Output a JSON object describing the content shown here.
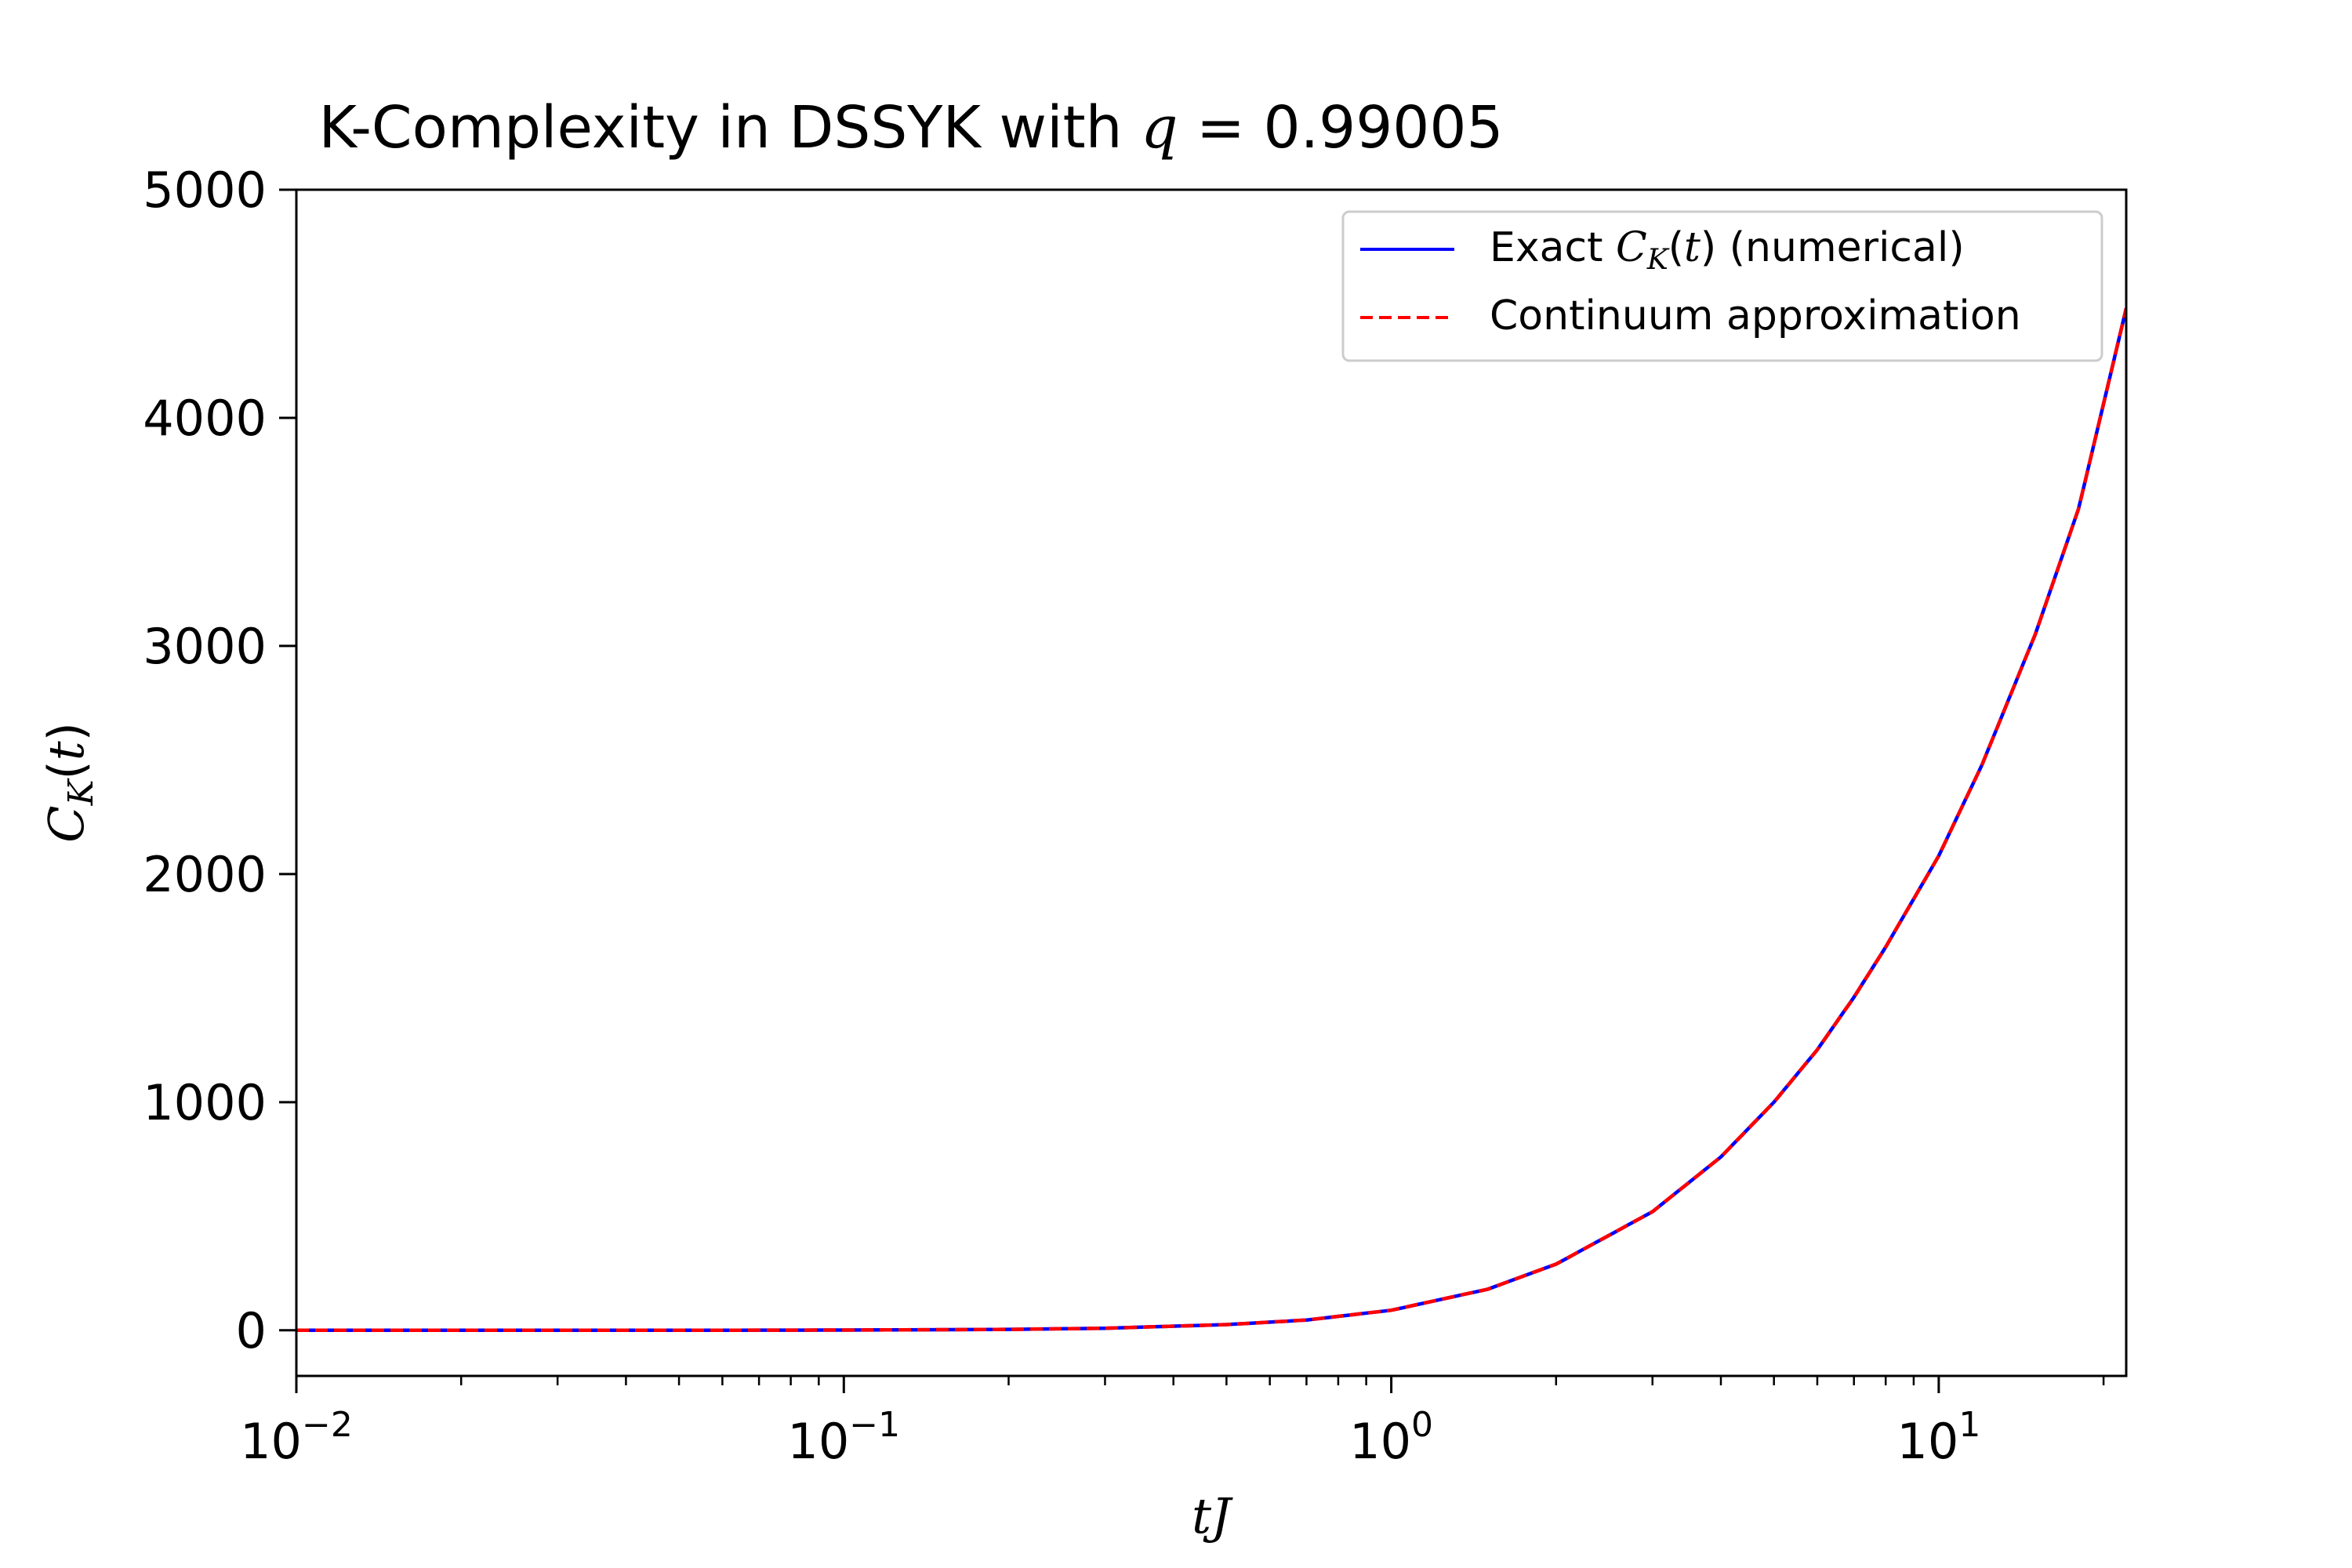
{
  "chart_data": {
    "type": "line",
    "title": "K-Complexity in DSSYK with ",
    "title_math": "q",
    "title_rhs": " = 0.99005",
    "xlabel": "tJ",
    "ylabel": "C_K(t)",
    "xscale": "log",
    "xlim": [
      0.01,
      22
    ],
    "ylim": [
      -200,
      5000
    ],
    "x_ticks": [
      {
        "value": 0.01,
        "base": "10",
        "exp": "−2"
      },
      {
        "value": 0.1,
        "base": "10",
        "exp": "−1"
      },
      {
        "value": 1,
        "base": "10",
        "exp": "0"
      },
      {
        "value": 10,
        "base": "10",
        "exp": "1"
      }
    ],
    "y_ticks": [
      {
        "value": 0,
        "label": "0"
      },
      {
        "value": 1000,
        "label": "1000"
      },
      {
        "value": 2000,
        "label": "2000"
      },
      {
        "value": 3000,
        "label": "3000"
      },
      {
        "value": 4000,
        "label": "4000"
      },
      {
        "value": 5000,
        "label": "5000"
      }
    ],
    "legend_position": "top-right",
    "series": [
      {
        "name": "Exact C_K(t) (numerical)",
        "legend_prefix": "Exact ",
        "legend_suffix": " (numerical)",
        "color": "#0000ff",
        "style": "solid",
        "x": [
          0.01,
          0.02,
          0.05,
          0.1,
          0.2,
          0.3,
          0.5,
          0.7,
          1,
          1.5,
          2,
          3,
          4,
          5,
          6,
          7,
          8,
          10,
          12,
          15,
          18,
          22
        ],
        "y": [
          0.01,
          0.04,
          0.25,
          1,
          4,
          9,
          25,
          45,
          88,
          180,
          290,
          520,
          760,
          1000,
          1230,
          1460,
          1680,
          2080,
          2480,
          3050,
          3600,
          4480
        ]
      },
      {
        "name": "Continuum approximation",
        "color": "#ff0000",
        "style": "dashed",
        "x": [
          0.01,
          0.02,
          0.05,
          0.1,
          0.2,
          0.3,
          0.5,
          0.7,
          1,
          1.5,
          2,
          3,
          4,
          5,
          6,
          7,
          8,
          10,
          12,
          15,
          18,
          22
        ],
        "y": [
          0.01,
          0.04,
          0.25,
          1,
          4,
          9,
          25,
          45,
          88,
          180,
          290,
          520,
          760,
          1000,
          1230,
          1460,
          1680,
          2080,
          2480,
          3050,
          3600,
          4480
        ]
      }
    ]
  }
}
